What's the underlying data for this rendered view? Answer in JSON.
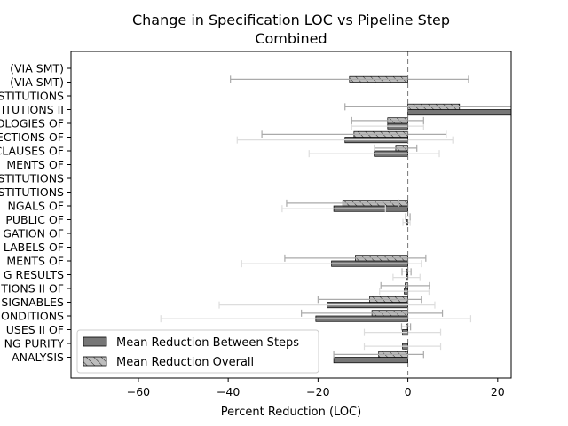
{
  "chart_data": {
    "type": "bar",
    "orientation": "horizontal",
    "title": "Change in Specification LOC vs Pipeline Step",
    "subtitle": "Combined",
    "xlabel": "Percent Reduction (LOC)",
    "ylabel": "",
    "xlim": [
      -75,
      23
    ],
    "xticks": [
      -60,
      -40,
      -20,
      0,
      20
    ],
    "categories": [
      "(VIA SMT)",
      "(VIA SMT)",
      "STITUTIONS",
      "STITUTIONS II",
      "OLOGIES OF",
      "ECTIONS OF",
      "CLAUSES OF",
      "MENTS OF",
      "STITUTIONS",
      "STITUTIONS",
      "NGALS OF",
      "PUBLIC OF",
      "GATION OF",
      "LABELS OF",
      "MENTS OF",
      "G RESULTS",
      "TIONS II OF",
      "SIGNABLES",
      "ONDITIONS",
      "USES II OF",
      "NG PURITY",
      "ANALYSIS"
    ],
    "series": [
      {
        "name": "Mean Reduction Between Steps",
        "color": "#777777",
        "hatch": false,
        "values": [
          0,
          0,
          0,
          24,
          -4.5,
          -14,
          -7.5,
          0,
          0,
          0,
          -16.5,
          -0.3,
          0,
          0,
          -17,
          -0.3,
          -0.8,
          -18,
          -20.5,
          -1.2,
          -1.2,
          -16.5
        ],
        "error_minus": [
          0,
          0,
          0,
          0,
          8,
          24,
          14.5,
          0,
          0,
          0,
          11.5,
          0.8,
          0,
          0,
          20,
          3,
          5.5,
          24,
          34.5,
          8.5,
          8.5,
          0
        ],
        "error_plus": [
          0,
          0,
          0,
          0,
          8,
          24,
          14.5,
          0,
          0,
          0,
          11.5,
          0.8,
          0,
          0,
          20,
          3,
          5.5,
          24,
          34.5,
          8.5,
          8.5,
          0
        ]
      },
      {
        "name": "Mean Reduction Overall",
        "color": "#bdbdbd",
        "hatch": true,
        "values": [
          0,
          -13,
          0,
          11.5,
          -4.5,
          -12,
          -2.7,
          0,
          0,
          0,
          -14.5,
          0,
          0,
          0,
          -11.7,
          -0.3,
          -0.6,
          -8.5,
          -8,
          -0.4,
          0,
          -6.5
        ],
        "error_minus": [
          0,
          26.5,
          0,
          25.5,
          8,
          20.5,
          4.7,
          0,
          0,
          0,
          12.5,
          0.5,
          0,
          0,
          15.7,
          1,
          5.4,
          11.5,
          15.7,
          1,
          0,
          10
        ],
        "error_plus": [
          0,
          26.5,
          0,
          25.5,
          8,
          20.5,
          4.7,
          0,
          0,
          0,
          12.5,
          0.5,
          0,
          0,
          15.7,
          1,
          5.4,
          11.5,
          15.7,
          1,
          0,
          10
        ]
      }
    ],
    "legend": {
      "position": "lower-left"
    },
    "grid": false
  }
}
